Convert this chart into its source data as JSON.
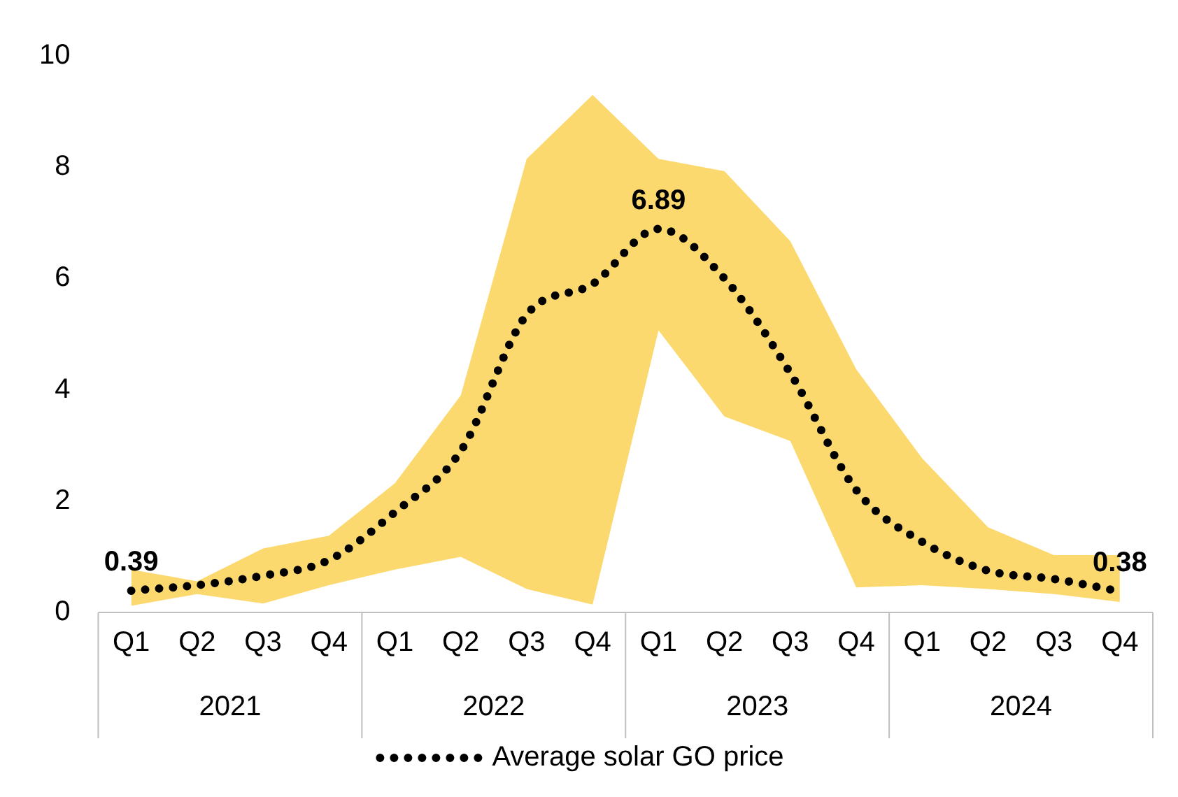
{
  "chart_data": {
    "type": "line",
    "categories": [
      "Q1",
      "Q2",
      "Q3",
      "Q4",
      "Q1",
      "Q2",
      "Q3",
      "Q4",
      "Q1",
      "Q2",
      "Q3",
      "Q4",
      "Q1",
      "Q2",
      "Q3",
      "Q4"
    ],
    "annotations": [
      "2021",
      "2022",
      "2023",
      "2024"
    ],
    "series": [
      {
        "name": "Average solar GO price",
        "color": "#000000",
        "line_style": "dotted",
        "values": [
          0.39,
          0.49,
          0.66,
          0.94,
          1.8,
          2.9,
          5.35,
          5.9,
          6.89,
          6.0,
          4.3,
          2.2,
          1.27,
          0.75,
          0.6,
          0.38
        ],
        "lower": [
          0.12,
          0.33,
          0.16,
          0.49,
          0.77,
          1.0,
          0.42,
          0.14,
          5.07,
          3.52,
          3.08,
          0.45,
          0.49,
          0.42,
          0.33,
          0.19
        ],
        "upper": [
          0.77,
          0.56,
          1.15,
          1.38,
          2.32,
          3.9,
          8.15,
          9.3,
          8.15,
          7.93,
          6.67,
          4.37,
          2.77,
          1.53,
          1.03,
          1.03
        ],
        "value_labels": [
          "0.39",
          null,
          null,
          null,
          null,
          null,
          null,
          null,
          "6.89",
          null,
          null,
          null,
          null,
          null,
          null,
          "0.38"
        ]
      }
    ],
    "ylim": [
      0,
      10
    ],
    "yticks": [
      0,
      2,
      4,
      6,
      8,
      10
    ],
    "grid": false,
    "legend": "bottom",
    "marker": "none"
  }
}
